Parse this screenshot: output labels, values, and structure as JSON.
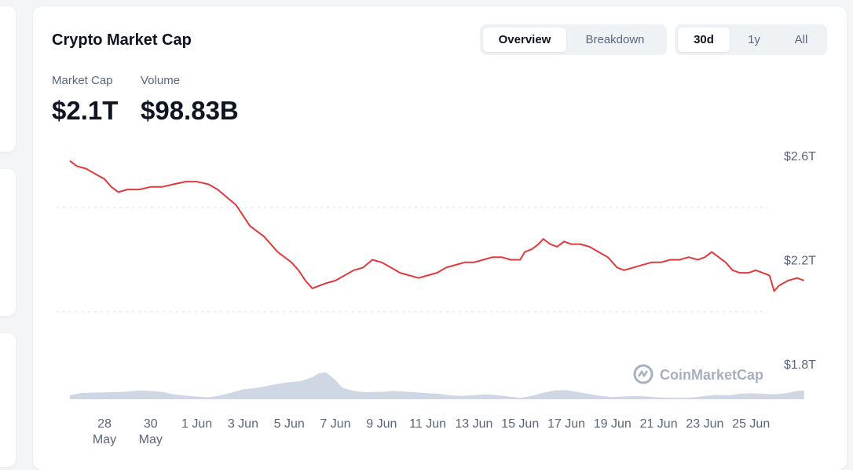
{
  "card": {
    "title": "Crypto Market Cap",
    "view_tabs": [
      {
        "label": "Overview",
        "active": true
      },
      {
        "label": "Breakdown",
        "active": false
      }
    ],
    "range_tabs": [
      {
        "label": "30d",
        "active": true
      },
      {
        "label": "1y",
        "active": false
      },
      {
        "label": "All",
        "active": false
      }
    ],
    "stats": {
      "market_cap_label": "Market Cap",
      "market_cap_value": "$2.1T",
      "volume_label": "Volume",
      "volume_value": "$98.83B"
    },
    "watermark": "CoinMarketCap"
  },
  "colors": {
    "line": "#e03a3e",
    "volume": "#cfd6e4",
    "grid": "#dfe3ea",
    "text_muted": "#58667e"
  },
  "chart_data": {
    "type": "line",
    "x_ticks": [
      {
        "day": 0,
        "line1": "28",
        "line2": "May"
      },
      {
        "day": 2,
        "line1": "30",
        "line2": "May"
      },
      {
        "day": 4,
        "line1": "1 Jun"
      },
      {
        "day": 6,
        "line1": "3 Jun"
      },
      {
        "day": 8,
        "line1": "5 Jun"
      },
      {
        "day": 10,
        "line1": "7 Jun"
      },
      {
        "day": 12,
        "line1": "9 Jun"
      },
      {
        "day": 14,
        "line1": "11 Jun"
      },
      {
        "day": 16,
        "line1": "13 Jun"
      },
      {
        "day": 18,
        "line1": "15 Jun"
      },
      {
        "day": 20,
        "line1": "17 Jun"
      },
      {
        "day": 22,
        "line1": "19 Jun"
      },
      {
        "day": 24,
        "line1": "21 Jun"
      },
      {
        "day": 26,
        "line1": "23 Jun"
      },
      {
        "day": 28,
        "line1": "25 Jun"
      }
    ],
    "y_axis": {
      "ticks": [
        {
          "value": 2.6,
          "label": "$2.6T"
        },
        {
          "value": 2.2,
          "label": "$2.2T"
        },
        {
          "value": 1.8,
          "label": "$1.8T"
        }
      ],
      "min": 1.8,
      "max": 2.6,
      "position": "right"
    },
    "series": [
      {
        "type": "line",
        "points": [
          [
            -1.5,
            2.58
          ],
          [
            -1.2,
            2.56
          ],
          [
            -0.8,
            2.55
          ],
          [
            -0.4,
            2.53
          ],
          [
            0,
            2.51
          ],
          [
            0.3,
            2.48
          ],
          [
            0.6,
            2.46
          ],
          [
            1.0,
            2.47
          ],
          [
            1.5,
            2.47
          ],
          [
            2.0,
            2.48
          ],
          [
            2.5,
            2.48
          ],
          [
            3.0,
            2.49
          ],
          [
            3.5,
            2.5
          ],
          [
            4.0,
            2.5
          ],
          [
            4.5,
            2.49
          ],
          [
            4.9,
            2.47
          ],
          [
            5.3,
            2.44
          ],
          [
            5.7,
            2.41
          ],
          [
            6.0,
            2.37
          ],
          [
            6.3,
            2.33
          ],
          [
            6.6,
            2.31
          ],
          [
            6.9,
            2.29
          ],
          [
            7.2,
            2.26
          ],
          [
            7.5,
            2.23
          ],
          [
            7.8,
            2.21
          ],
          [
            8.1,
            2.19
          ],
          [
            8.4,
            2.16
          ],
          [
            8.7,
            2.12
          ],
          [
            9.0,
            2.09
          ],
          [
            9.3,
            2.1
          ],
          [
            9.6,
            2.11
          ],
          [
            10.0,
            2.12
          ],
          [
            10.4,
            2.14
          ],
          [
            10.8,
            2.16
          ],
          [
            11.2,
            2.17
          ],
          [
            11.6,
            2.2
          ],
          [
            12.0,
            2.19
          ],
          [
            12.4,
            2.17
          ],
          [
            12.8,
            2.15
          ],
          [
            13.2,
            2.14
          ],
          [
            13.6,
            2.13
          ],
          [
            14.0,
            2.14
          ],
          [
            14.4,
            2.15
          ],
          [
            14.8,
            2.17
          ],
          [
            15.2,
            2.18
          ],
          [
            15.6,
            2.19
          ],
          [
            16.0,
            2.19
          ],
          [
            16.4,
            2.2
          ],
          [
            16.8,
            2.21
          ],
          [
            17.2,
            2.21
          ],
          [
            17.6,
            2.2
          ],
          [
            18.0,
            2.2
          ],
          [
            18.2,
            2.23
          ],
          [
            18.5,
            2.24
          ],
          [
            18.8,
            2.26
          ],
          [
            19.0,
            2.28
          ],
          [
            19.3,
            2.26
          ],
          [
            19.6,
            2.25
          ],
          [
            19.9,
            2.27
          ],
          [
            20.2,
            2.26
          ],
          [
            20.6,
            2.26
          ],
          [
            21.0,
            2.25
          ],
          [
            21.4,
            2.23
          ],
          [
            21.8,
            2.21
          ],
          [
            22.2,
            2.17
          ],
          [
            22.5,
            2.16
          ],
          [
            22.9,
            2.17
          ],
          [
            23.3,
            2.18
          ],
          [
            23.7,
            2.19
          ],
          [
            24.1,
            2.19
          ],
          [
            24.5,
            2.2
          ],
          [
            24.9,
            2.2
          ],
          [
            25.3,
            2.21
          ],
          [
            25.7,
            2.2
          ],
          [
            26.0,
            2.21
          ],
          [
            26.3,
            2.23
          ],
          [
            26.6,
            2.21
          ],
          [
            26.9,
            2.19
          ],
          [
            27.2,
            2.16
          ],
          [
            27.5,
            2.15
          ],
          [
            27.9,
            2.15
          ],
          [
            28.2,
            2.16
          ],
          [
            28.5,
            2.15
          ],
          [
            28.8,
            2.14
          ],
          [
            29.0,
            2.08
          ],
          [
            29.2,
            2.1
          ],
          [
            29.6,
            2.12
          ],
          [
            30.0,
            2.13
          ],
          [
            30.3,
            2.12
          ]
        ]
      },
      {
        "type": "area",
        "points": [
          [
            -1.5,
            0.14
          ],
          [
            -1,
            0.23
          ],
          [
            0,
            0.25
          ],
          [
            0.5,
            0.26
          ],
          [
            1,
            0.28
          ],
          [
            1.5,
            0.32
          ],
          [
            2,
            0.3
          ],
          [
            2.5,
            0.27
          ],
          [
            3,
            0.18
          ],
          [
            3.5,
            0.13
          ],
          [
            4,
            0.1
          ],
          [
            4.5,
            0.07
          ],
          [
            5,
            0.14
          ],
          [
            5.5,
            0.24
          ],
          [
            6,
            0.36
          ],
          [
            6.5,
            0.4
          ],
          [
            7,
            0.48
          ],
          [
            7.5,
            0.56
          ],
          [
            8,
            0.62
          ],
          [
            8.5,
            0.66
          ],
          [
            9,
            0.8
          ],
          [
            9.3,
            0.95
          ],
          [
            9.6,
            0.98
          ],
          [
            10,
            0.7
          ],
          [
            10.3,
            0.42
          ],
          [
            10.8,
            0.3
          ],
          [
            11.2,
            0.26
          ],
          [
            12,
            0.27
          ],
          [
            12.5,
            0.3
          ],
          [
            13,
            0.28
          ],
          [
            13.5,
            0.25
          ],
          [
            14,
            0.22
          ],
          [
            14.5,
            0.2
          ],
          [
            15,
            0.14
          ],
          [
            15.5,
            0.12
          ],
          [
            16,
            0.15
          ],
          [
            16.5,
            0.18
          ],
          [
            17,
            0.15
          ],
          [
            17.5,
            0.1
          ],
          [
            18,
            0.05
          ],
          [
            18.5,
            0.12
          ],
          [
            19,
            0.24
          ],
          [
            19.5,
            0.32
          ],
          [
            20,
            0.33
          ],
          [
            20.5,
            0.26
          ],
          [
            21,
            0.19
          ],
          [
            21.5,
            0.12
          ],
          [
            22,
            0.08
          ],
          [
            22.5,
            0.1
          ],
          [
            23,
            0.12
          ],
          [
            23.5,
            0.1
          ],
          [
            24,
            0.07
          ],
          [
            24.5,
            0.06
          ],
          [
            25,
            0.05
          ],
          [
            25.5,
            0.07
          ],
          [
            26,
            0.12
          ],
          [
            26.5,
            0.16
          ],
          [
            27,
            0.14
          ],
          [
            27.5,
            0.2
          ],
          [
            28,
            0.22
          ],
          [
            28.5,
            0.2
          ],
          [
            29,
            0.18
          ],
          [
            29.5,
            0.22
          ],
          [
            30,
            0.3
          ],
          [
            30.3,
            0.32
          ]
        ]
      }
    ]
  }
}
